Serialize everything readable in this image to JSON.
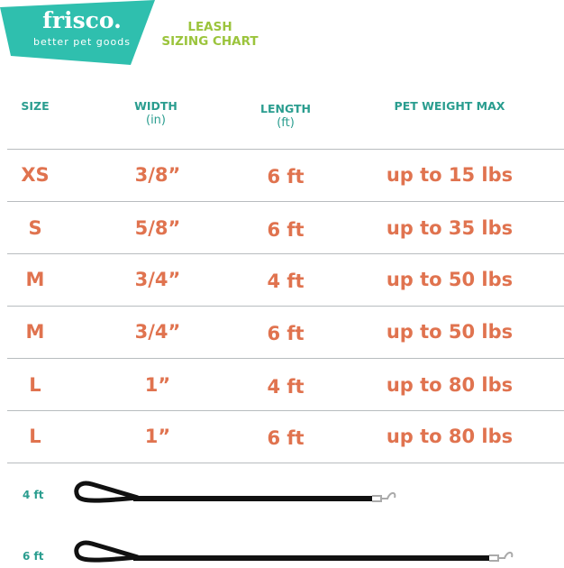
{
  "brand": {
    "name": "frisco.",
    "tagline": "better pet goods",
    "color": "#2fbfae"
  },
  "title": {
    "line1": "LEASH",
    "line2": "SIZING CHART"
  },
  "colors": {
    "header": "#2a9d8f",
    "title": "#9bc43c",
    "values": "#e0734f"
  },
  "columns": [
    {
      "label": "SIZE",
      "unit": ""
    },
    {
      "label": "WIDTH",
      "unit": "(in)"
    },
    {
      "label": "LENGTH",
      "unit": "(ft)"
    },
    {
      "label": "PET WEIGHT MAX",
      "unit": ""
    }
  ],
  "rows": [
    [
      "XS",
      "3/8”",
      "6 ft",
      "up to 15 lbs"
    ],
    [
      "S",
      "5/8”",
      "6 ft",
      "up to 35 lbs"
    ],
    [
      "M",
      "3/4”",
      "4 ft",
      "up to 50 lbs"
    ],
    [
      "M",
      "3/4”",
      "6 ft",
      "up to 50 lbs"
    ],
    [
      "L",
      "1”",
      "4 ft",
      "up to 80 lbs"
    ],
    [
      "L",
      "1”",
      "6 ft",
      "up to 80 lbs"
    ]
  ],
  "leashes": [
    {
      "label": "4 ft"
    },
    {
      "label": "6 ft"
    }
  ]
}
